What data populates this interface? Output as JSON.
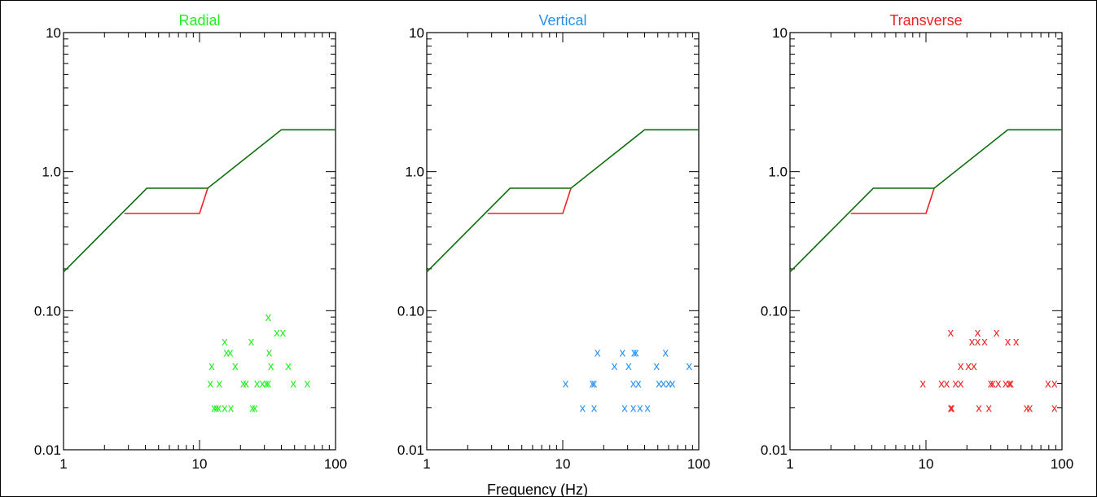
{
  "figure": {
    "xlabel": "Frequency (Hz)"
  },
  "colors": {
    "radial": "#22ee22",
    "vertical": "#2a8ff0",
    "transverse": "#ee2222",
    "limit_upper": "#0a6e0a",
    "limit_lower": "#ee2222"
  },
  "chart_data": [
    {
      "type": "scatter",
      "title": "Radial",
      "color_key": "radial",
      "xscale": "log",
      "yscale": "log",
      "xlim": [
        1,
        100
      ],
      "ylim": [
        0.01,
        10
      ],
      "xticks": [
        "1",
        "10",
        "100"
      ],
      "yticks": [
        "0.01",
        "0.10",
        "1.0",
        "10"
      ],
      "marker": "x",
      "points": [
        [
          12.3,
          0.04
        ],
        [
          12.0,
          0.03
        ],
        [
          14.0,
          0.03
        ],
        [
          12.8,
          0.02
        ],
        [
          13.3,
          0.02
        ],
        [
          13.8,
          0.02
        ],
        [
          15.3,
          0.02
        ],
        [
          17.0,
          0.02
        ],
        [
          15.3,
          0.06
        ],
        [
          15.8,
          0.05
        ],
        [
          16.8,
          0.05
        ],
        [
          18.3,
          0.04
        ],
        [
          21.0,
          0.03
        ],
        [
          22.0,
          0.03
        ],
        [
          24.0,
          0.06
        ],
        [
          24.5,
          0.02
        ],
        [
          25.5,
          0.02
        ],
        [
          26.5,
          0.03
        ],
        [
          29.0,
          0.03
        ],
        [
          31.0,
          0.03
        ],
        [
          32.0,
          0.03
        ],
        [
          32.5,
          0.05
        ],
        [
          33.5,
          0.04
        ],
        [
          32.0,
          0.09
        ],
        [
          37.0,
          0.07
        ],
        [
          41.0,
          0.07
        ],
        [
          45.0,
          0.04
        ],
        [
          49.0,
          0.03
        ],
        [
          62.0,
          0.03
        ]
      ],
      "limit_upper": [
        [
          1,
          0.19
        ],
        [
          4.1,
          0.76
        ],
        [
          11.5,
          0.76
        ],
        [
          40,
          2.0
        ],
        [
          100,
          2.0
        ]
      ],
      "limit_lower": [
        [
          2.8,
          0.5
        ],
        [
          10.0,
          0.5
        ],
        [
          11.5,
          0.76
        ]
      ]
    },
    {
      "type": "scatter",
      "title": "Vertical",
      "color_key": "vertical",
      "xscale": "log",
      "yscale": "log",
      "xlim": [
        1,
        100
      ],
      "ylim": [
        0.01,
        10
      ],
      "xticks": [
        "1",
        "10",
        "100"
      ],
      "yticks": [
        "0.01",
        "0.10",
        "1.0",
        "10"
      ],
      "marker": "x",
      "points": [
        [
          10.5,
          0.03
        ],
        [
          14.0,
          0.02
        ],
        [
          16.5,
          0.03
        ],
        [
          17.0,
          0.03
        ],
        [
          17.0,
          0.02
        ],
        [
          18.0,
          0.05
        ],
        [
          24.0,
          0.04
        ],
        [
          27.5,
          0.05
        ],
        [
          28.5,
          0.02
        ],
        [
          30.5,
          0.04
        ],
        [
          33.0,
          0.02
        ],
        [
          33.5,
          0.05
        ],
        [
          33.0,
          0.03
        ],
        [
          34.5,
          0.05
        ],
        [
          36.0,
          0.03
        ],
        [
          37.0,
          0.02
        ],
        [
          42.0,
          0.02
        ],
        [
          49.0,
          0.04
        ],
        [
          51.0,
          0.03
        ],
        [
          55.0,
          0.03
        ],
        [
          57.0,
          0.05
        ],
        [
          60.0,
          0.03
        ],
        [
          64.0,
          0.03
        ],
        [
          85.0,
          0.04
        ]
      ],
      "limit_upper": [
        [
          1,
          0.19
        ],
        [
          4.1,
          0.76
        ],
        [
          11.5,
          0.76
        ],
        [
          40,
          2.0
        ],
        [
          100,
          2.0
        ]
      ],
      "limit_lower": [
        [
          2.8,
          0.5
        ],
        [
          10.0,
          0.5
        ],
        [
          11.5,
          0.76
        ]
      ]
    },
    {
      "type": "scatter",
      "title": "Transverse",
      "color_key": "transverse",
      "xscale": "log",
      "yscale": "log",
      "xlim": [
        1,
        100
      ],
      "ylim": [
        0.01,
        10
      ],
      "xticks": [
        "1",
        "10",
        "100"
      ],
      "yticks": [
        "0.01",
        "0.10",
        "1.0",
        "10"
      ],
      "marker": "x",
      "points": [
        [
          9.5,
          0.03
        ],
        [
          13.0,
          0.03
        ],
        [
          14.2,
          0.03
        ],
        [
          15.2,
          0.07
        ],
        [
          15.2,
          0.02
        ],
        [
          15.5,
          0.02
        ],
        [
          16.5,
          0.03
        ],
        [
          18.0,
          0.03
        ],
        [
          18.0,
          0.04
        ],
        [
          20.5,
          0.04
        ],
        [
          21.8,
          0.06
        ],
        [
          22.5,
          0.04
        ],
        [
          24.0,
          0.07
        ],
        [
          24.0,
          0.06
        ],
        [
          24.5,
          0.02
        ],
        [
          27.0,
          0.06
        ],
        [
          29.0,
          0.02
        ],
        [
          30.0,
          0.03
        ],
        [
          31.0,
          0.03
        ],
        [
          33.0,
          0.07
        ],
        [
          34.0,
          0.03
        ],
        [
          38.5,
          0.03
        ],
        [
          40.0,
          0.06
        ],
        [
          41.0,
          0.03
        ],
        [
          42.0,
          0.03
        ],
        [
          46.0,
          0.06
        ],
        [
          55.0,
          0.02
        ],
        [
          58.0,
          0.02
        ],
        [
          79.0,
          0.03
        ],
        [
          88.0,
          0.03
        ],
        [
          88.0,
          0.02
        ]
      ],
      "limit_upper": [
        [
          1,
          0.19
        ],
        [
          4.1,
          0.76
        ],
        [
          11.5,
          0.76
        ],
        [
          40,
          2.0
        ],
        [
          100,
          2.0
        ]
      ],
      "limit_lower": [
        [
          2.8,
          0.5
        ],
        [
          10.0,
          0.5
        ],
        [
          11.5,
          0.76
        ]
      ]
    }
  ]
}
